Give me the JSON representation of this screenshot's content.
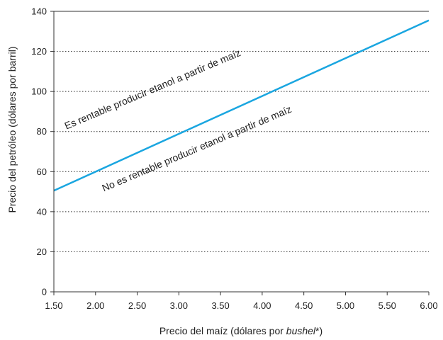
{
  "chart_data": {
    "type": "line",
    "title": "",
    "xlabel_prefix": "Precio del maíz (dólares por ",
    "xlabel_italic": "bushel",
    "xlabel_suffix": "*)",
    "ylabel": "Precio del petróleo (dólares por barril)",
    "xlim": [
      1.5,
      6.0
    ],
    "ylim": [
      0,
      140
    ],
    "x_ticks": [
      "1.50",
      "2.00",
      "2.50",
      "3.00",
      "3.50",
      "4.00",
      "4.50",
      "5.00",
      "5.50",
      "6.00"
    ],
    "y_ticks": [
      "0",
      "20",
      "40",
      "60",
      "80",
      "100",
      "120",
      "140"
    ],
    "grid": "horizontal-dotted",
    "series": [
      {
        "x": [
          1.5,
          6.0
        ],
        "y": [
          50.5,
          135.5
        ],
        "color": "#1aa6e0"
      }
    ],
    "annotations": [
      {
        "text": "Es rentable producir etanol a partir de maíz",
        "x": 1.65,
        "y": 81,
        "angle": -23
      },
      {
        "text": "No es rentable producir etanol a partir de maíz",
        "x": 2.1,
        "y": 50,
        "angle": -23
      }
    ]
  }
}
